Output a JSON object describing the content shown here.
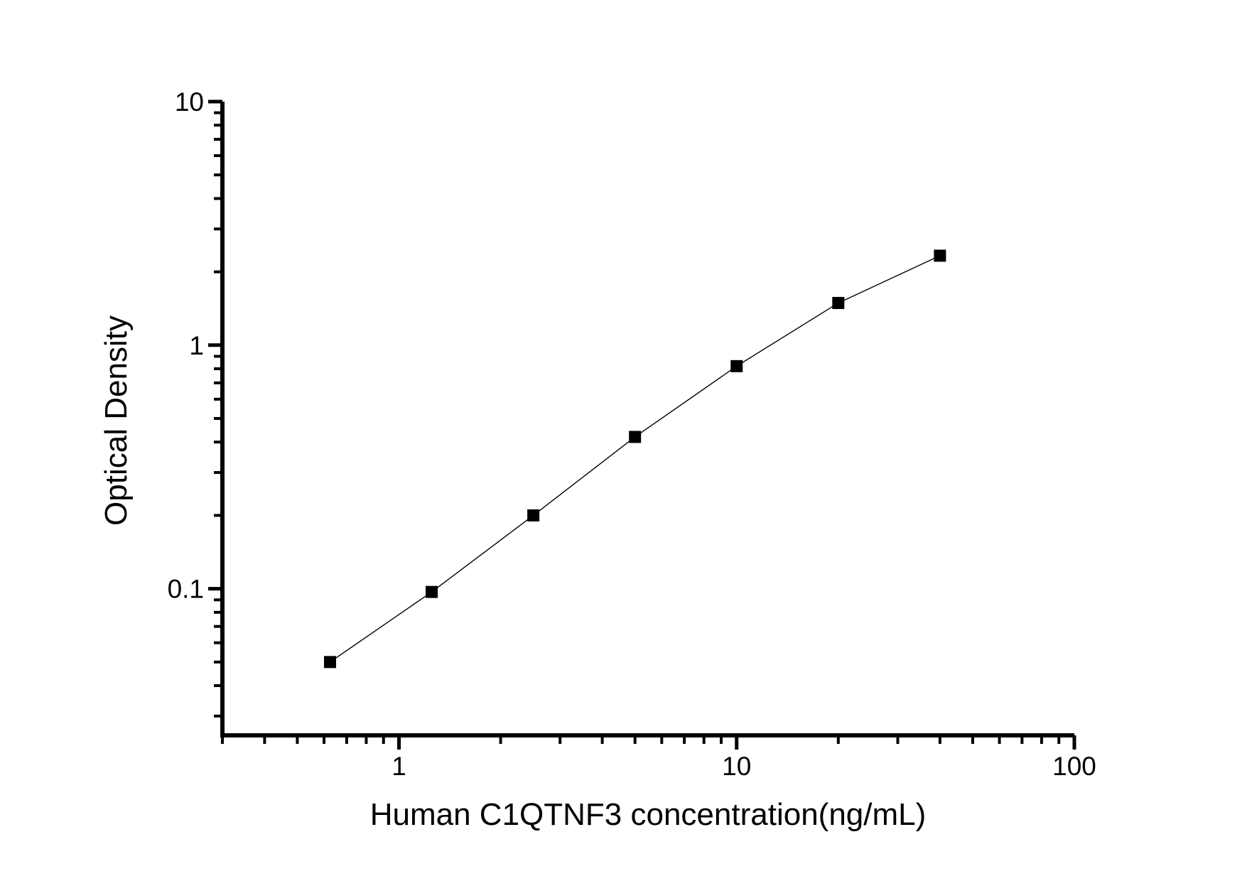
{
  "figure": {
    "background": "#ffffff",
    "ink_color": "#000000"
  },
  "chart_data": {
    "type": "line",
    "title": "",
    "xlabel": "Human C1QTNF3 concentration(ng/mL)",
    "ylabel": "Optical Density",
    "x_scale": "log",
    "y_scale": "log",
    "xlim": [
      0.3,
      100
    ],
    "ylim": [
      0.025,
      10
    ],
    "x_major_ticks": [
      1,
      10,
      100
    ],
    "x_tick_labels": [
      "1",
      "10",
      "100"
    ],
    "y_major_ticks": [
      0.1,
      1,
      10
    ],
    "y_tick_labels": [
      "0.1",
      "1",
      "10"
    ],
    "grid": false,
    "legend_position": "none",
    "series": [
      {
        "name": "standard_curve",
        "marker": "filled-square",
        "color": "#000000",
        "x": [
          0.625,
          1.25,
          2.5,
          5,
          10,
          20,
          40
        ],
        "y": [
          0.05,
          0.097,
          0.2,
          0.42,
          0.82,
          1.49,
          2.33
        ]
      }
    ]
  }
}
